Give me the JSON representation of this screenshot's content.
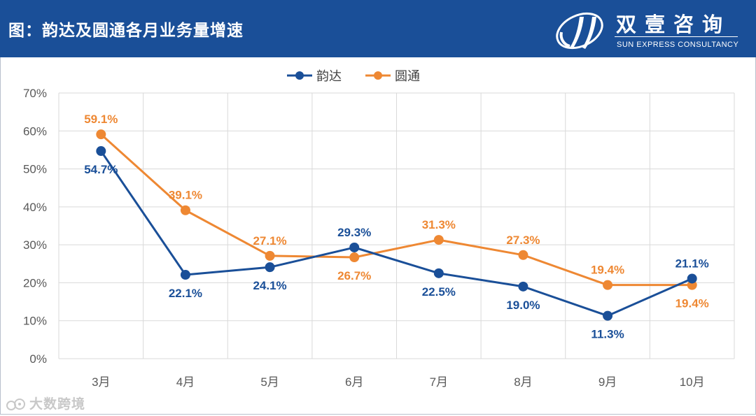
{
  "header": {
    "title": "图：韵达及圆通各月业务量增速",
    "brand_name": "双壹咨询",
    "brand_sub": "SUN EXPRESS CONSULTANCY"
  },
  "watermark": {
    "text": "大数跨境",
    "icon": "watermark-logo-icon"
  },
  "colors": {
    "header_bg": "#1a4f98",
    "yunda": "#1a4f98",
    "yuantong": "#ee8833",
    "grid": "#d9d9d9"
  },
  "chart_data": {
    "type": "line",
    "title": "",
    "categories": [
      "3月",
      "4月",
      "5月",
      "6月",
      "7月",
      "8月",
      "9月",
      "10月"
    ],
    "series": [
      {
        "name": "韵达",
        "values": [
          54.7,
          22.1,
          24.1,
          29.3,
          22.5,
          19.0,
          11.3,
          21.1
        ],
        "labels": [
          "54.7%",
          "22.1%",
          "24.1%",
          "29.3%",
          "22.5%",
          "19.0%",
          "11.3%",
          "21.1%"
        ],
        "label_pos": [
          "below",
          "below",
          "below",
          "above",
          "below",
          "below",
          "below",
          "above"
        ]
      },
      {
        "name": "圆通",
        "values": [
          59.1,
          39.1,
          27.1,
          26.7,
          31.3,
          27.3,
          19.4,
          19.4
        ],
        "labels": [
          "59.1%",
          "39.1%",
          "27.1%",
          "26.7%",
          "31.3%",
          "27.3%",
          "19.4%",
          "19.4%"
        ],
        "label_pos": [
          "above",
          "above",
          "above",
          "below",
          "above",
          "above",
          "above",
          "below"
        ]
      }
    ],
    "ylim": [
      0,
      70
    ],
    "yticks": [
      "0%",
      "10%",
      "20%",
      "30%",
      "40%",
      "50%",
      "60%",
      "70%"
    ],
    "legend": "top-center",
    "grid": true
  }
}
